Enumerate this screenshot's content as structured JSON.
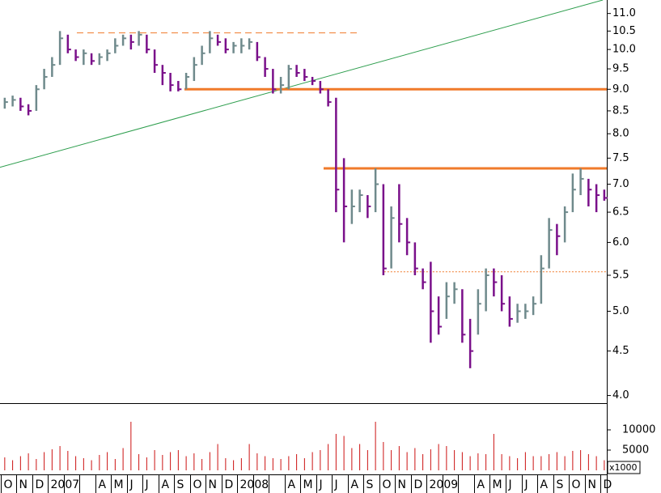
{
  "chart_data": {
    "type": "ohlc",
    "categories": [
      "O",
      "N",
      "D",
      "2007",
      null,
      null,
      "A",
      "M",
      "J",
      "J",
      "A",
      "S",
      "O",
      "N",
      "D",
      "2008",
      null,
      null,
      "A",
      "M",
      "J",
      "J",
      "A",
      "S",
      "O",
      "N",
      "D",
      "2009",
      null,
      null,
      "A",
      "M",
      "J",
      "J",
      "A",
      "S",
      "O",
      "N",
      "D"
    ],
    "xlim": [
      -0.05,
      38.41
    ],
    "x": [
      0.25,
      0.75,
      1.25,
      1.75,
      2.25,
      2.75,
      3.25,
      3.75,
      4.25,
      4.75,
      5.25,
      5.75,
      6.25,
      6.75,
      7.25,
      7.75,
      8.25,
      8.75,
      9.25,
      9.75,
      10.25,
      10.75,
      11.25,
      11.75,
      12.25,
      12.75,
      13.25,
      13.75,
      14.25,
      14.75,
      15.25,
      15.75,
      16.25,
      16.75,
      17.25,
      17.75,
      18.25,
      18.75,
      19.25,
      19.75,
      20.25,
      20.75,
      21.25,
      21.75,
      22.25,
      22.75,
      23.25,
      23.75,
      24.25,
      24.75,
      25.25,
      25.75,
      26.25,
      26.75,
      27.25,
      27.75,
      28.25,
      28.75,
      29.25,
      29.75,
      30.25,
      30.75,
      31.25,
      31.75,
      32.25,
      32.75,
      33.25,
      33.75,
      34.25,
      34.75,
      35.25,
      35.75,
      36.25,
      36.75,
      37.25,
      37.75,
      38.25
    ],
    "high": [
      8.8,
      8.85,
      8.8,
      8.65,
      9.1,
      9.5,
      9.8,
      10.5,
      10.4,
      10.0,
      10.0,
      9.9,
      9.9,
      10.0,
      10.3,
      10.4,
      10.4,
      10.5,
      10.4,
      10.0,
      9.6,
      9.4,
      9.2,
      9.4,
      9.8,
      10.1,
      10.5,
      10.4,
      10.3,
      10.2,
      10.3,
      10.3,
      10.2,
      9.8,
      9.5,
      9.3,
      9.6,
      9.6,
      9.5,
      9.3,
      9.2,
      9.0,
      8.8,
      7.5,
      6.9,
      6.9,
      6.8,
      7.3,
      7.0,
      6.6,
      7.0,
      6.4,
      6.0,
      5.6,
      5.7,
      5.2,
      5.4,
      5.4,
      5.3,
      4.9,
      5.3,
      5.6,
      5.6,
      5.5,
      5.2,
      5.1,
      5.1,
      5.2,
      5.8,
      6.4,
      6.3,
      6.6,
      7.2,
      7.3,
      7.1,
      7.0,
      6.9
    ],
    "low": [
      8.55,
      8.6,
      8.5,
      8.4,
      8.5,
      9.0,
      9.3,
      9.6,
      9.9,
      9.7,
      9.6,
      9.6,
      9.6,
      9.7,
      9.9,
      10.1,
      10.0,
      10.1,
      9.9,
      9.4,
      9.1,
      8.95,
      8.95,
      9.0,
      9.2,
      9.6,
      9.9,
      10.1,
      9.9,
      9.9,
      9.9,
      10.0,
      9.7,
      9.3,
      8.9,
      8.9,
      9.0,
      9.3,
      9.2,
      9.1,
      8.9,
      8.6,
      6.5,
      6.0,
      6.3,
      6.5,
      6.4,
      6.5,
      5.5,
      5.6,
      6.0,
      5.8,
      5.5,
      5.3,
      4.6,
      4.7,
      4.9,
      5.1,
      4.6,
      4.3,
      4.7,
      5.0,
      5.2,
      5.0,
      4.8,
      4.85,
      4.9,
      4.95,
      5.1,
      5.6,
      5.8,
      6.0,
      6.5,
      6.8,
      6.6,
      6.5,
      6.7
    ],
    "close": [
      8.7,
      8.75,
      8.6,
      8.5,
      9.0,
      9.3,
      9.6,
      10.3,
      10.0,
      9.8,
      9.9,
      9.7,
      9.8,
      9.9,
      10.1,
      10.3,
      10.2,
      10.4,
      10.0,
      9.6,
      9.4,
      9.1,
      9.0,
      9.3,
      9.6,
      9.9,
      10.3,
      10.2,
      10.0,
      10.1,
      10.1,
      10.2,
      9.8,
      9.5,
      9.0,
      9.1,
      9.5,
      9.4,
      9.3,
      9.2,
      9.0,
      8.7,
      6.9,
      6.6,
      6.6,
      6.8,
      6.6,
      7.0,
      5.6,
      6.4,
      6.3,
      6.0,
      5.6,
      5.4,
      5.0,
      4.8,
      5.2,
      5.3,
      4.7,
      4.5,
      5.1,
      5.5,
      5.4,
      5.1,
      4.9,
      5.0,
      5.0,
      5.1,
      5.6,
      6.2,
      6.1,
      6.5,
      6.9,
      7.1,
      6.9,
      6.8,
      6.75
    ],
    "up_color": "#6f8a8c",
    "down_color": "#7a108a",
    "log_scale": true,
    "ylim": [
      3.92,
      11.4
    ],
    "yticks": [
      {
        "value": 4,
        "label": "4.0"
      },
      4.5,
      {
        "value": 5,
        "label": "5.0"
      },
      5.5,
      {
        "value": 6,
        "label": "6.0"
      },
      6.5,
      {
        "value": 7,
        "label": "7.0"
      },
      7.5,
      {
        "value": 8,
        "label": "8.0"
      },
      8.5,
      {
        "value": 9,
        "label": "9.0"
      },
      9.5,
      {
        "value": 10,
        "label": "10.0"
      },
      10.5,
      {
        "value": 11,
        "label": "11.0"
      }
    ],
    "levels": [
      {
        "value": 9.0,
        "x": [
          11.64,
          38.41
        ],
        "color": "#f07a2a",
        "style": "solid"
      },
      {
        "value": 7.3,
        "x": [
          20.46,
          38.41
        ],
        "color": "#f07a2a",
        "style": "solid"
      },
      {
        "value": 10.45,
        "x": [
          4.82,
          22.67
        ],
        "color": "#f07a2a",
        "style": "dashed"
      },
      {
        "value": 5.55,
        "x": [
          24.3,
          38.41
        ],
        "color": "#f07a2a",
        "style": "dotted"
      }
    ],
    "trendline": {
      "x": [
        -0.05,
        38.16
      ],
      "values": [
        7.32,
        11.4
      ],
      "color": "#2e9e4e"
    },
    "volume": {
      "values": [
        3200,
        2500,
        3500,
        4200,
        2800,
        4500,
        5200,
        6000,
        4800,
        3500,
        3000,
        2500,
        3800,
        4500,
        2800,
        5500,
        12000,
        4000,
        3200,
        5000,
        3800,
        4500,
        5000,
        3500,
        4200,
        2800,
        4500,
        6500,
        3000,
        2500,
        3000,
        6500,
        4200,
        3500,
        3000,
        2800,
        3500,
        4000,
        3000,
        4500,
        5000,
        6500,
        9000,
        8500,
        5500,
        6500,
        5000,
        12000,
        7000,
        5000,
        6000,
        4500,
        5500,
        4000,
        5200,
        6500,
        6000,
        5000,
        4500,
        3500,
        4200,
        4000,
        9000,
        4000,
        3500,
        3000,
        4500,
        3500,
        3500,
        4000,
        4500,
        3500,
        4800,
        5000,
        4000,
        3500,
        2500
      ],
      "color": "#cc1111",
      "ylim": [
        -800,
        16400
      ],
      "yticks": [
        5000,
        10000
      ],
      "unit_label": "x1000"
    }
  }
}
